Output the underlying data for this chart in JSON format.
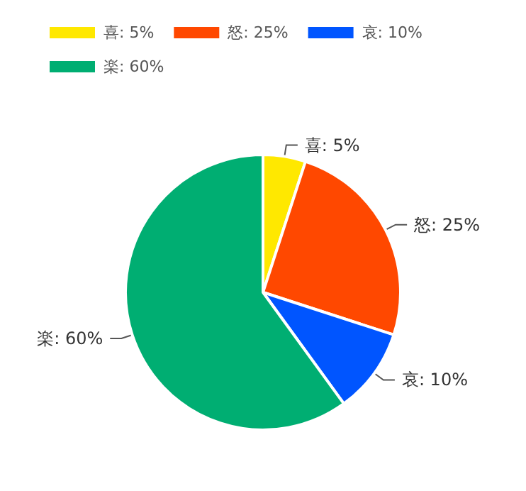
{
  "chart_data": {
    "type": "pie",
    "categories": [
      "喜: 5%",
      "怒: 25%",
      "哀: 10%",
      "楽: 60%"
    ],
    "values": [
      5,
      25,
      10,
      60
    ],
    "colors": [
      "#ffe800",
      "#ff4800",
      "#0055ff",
      "#00ae72"
    ],
    "legend": "top left"
  }
}
